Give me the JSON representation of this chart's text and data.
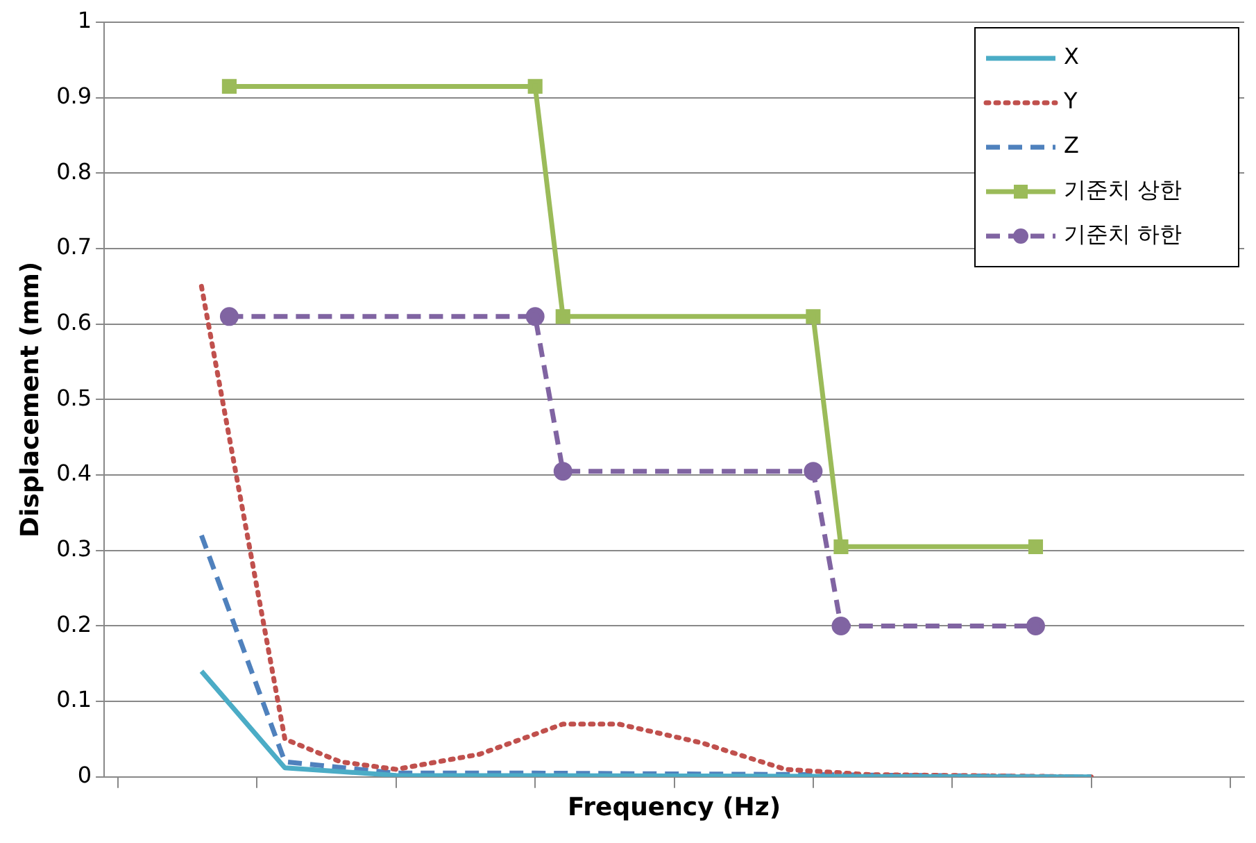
{
  "chart_data": {
    "type": "line",
    "xlabel": "Frequency (Hz)",
    "ylabel": "Displacement (mm)",
    "categories": [
      null,
      null,
      null,
      null,
      null,
      null,
      null,
      null,
      null,
      null,
      null,
      null,
      null,
      null,
      null,
      null,
      null,
      null,
      null,
      null,
      null,
      null,
      null,
      null,
      null,
      null,
      null,
      null,
      null,
      null,
      null,
      null,
      null,
      null,
      null,
      null,
      null,
      null,
      null,
      null,
      null
    ],
    "ylim": [
      0,
      1
    ],
    "yticks": [
      0,
      0.1,
      0.2,
      0.3,
      0.4,
      0.5,
      0.6,
      0.7,
      0.8,
      0.9,
      1
    ],
    "grid": "y",
    "legend": "top right",
    "tick_labels": "y",
    "series": [
      {
        "name": "X",
        "color": "#4bacc6",
        "marker": "none",
        "line_style": "solid",
        "values": [
          null,
          null,
          null,
          0.14,
          null,
          null,
          0.012,
          null,
          null,
          null,
          0.002,
          null,
          null,
          null,
          null,
          null,
          null,
          null,
          null,
          null,
          null,
          null,
          null,
          null,
          null,
          null,
          null,
          null,
          null,
          null,
          null,
          null,
          null,
          null,
          null,
          0,
          null,
          null,
          null,
          null,
          null
        ]
      },
      {
        "name": "Y",
        "color": "#c0504d",
        "marker": "none",
        "line_style": "dotted",
        "values": [
          null,
          null,
          null,
          0.65,
          null,
          null,
          0.05,
          null,
          0.02,
          null,
          0.01,
          null,
          null,
          0.03,
          null,
          null,
          0.07,
          null,
          0.07,
          null,
          null,
          0.045,
          null,
          null,
          0.01,
          null,
          null,
          0.003,
          null,
          null,
          null,
          null,
          null,
          null,
          null,
          0,
          null,
          null,
          null,
          null,
          null
        ]
      },
      {
        "name": "Z",
        "color": "#4f81bd",
        "marker": "none",
        "line_style": "dashed",
        "values": [
          null,
          null,
          null,
          0.32,
          null,
          null,
          0.02,
          null,
          null,
          null,
          0.005,
          null,
          null,
          null,
          null,
          0.005,
          null,
          null,
          null,
          null,
          null,
          null,
          null,
          null,
          null,
          0.003,
          null,
          null,
          null,
          null,
          null,
          null,
          null,
          null,
          null,
          0,
          null,
          null,
          null,
          null,
          null
        ]
      },
      {
        "name": "기준치 상한",
        "color": "#9bbb59",
        "marker": "square",
        "line_style": "solid",
        "values": [
          null,
          null,
          null,
          null,
          0.915,
          null,
          null,
          null,
          null,
          null,
          null,
          null,
          null,
          null,
          null,
          0.915,
          0.61,
          null,
          null,
          null,
          null,
          null,
          null,
          null,
          null,
          0.61,
          0.305,
          null,
          null,
          null,
          null,
          null,
          null,
          0.305,
          null,
          null,
          null,
          null,
          null,
          null,
          null
        ]
      },
      {
        "name": "기준치 하한",
        "color": "#8064a2",
        "marker": "circle",
        "line_style": "dashed",
        "values": [
          null,
          null,
          null,
          null,
          0.61,
          null,
          null,
          null,
          null,
          null,
          null,
          null,
          null,
          null,
          null,
          0.61,
          0.405,
          null,
          null,
          null,
          null,
          null,
          null,
          null,
          null,
          0.405,
          0.2,
          null,
          null,
          null,
          null,
          null,
          null,
          0.2,
          null,
          null,
          null,
          null,
          null,
          null,
          null
        ]
      }
    ]
  }
}
